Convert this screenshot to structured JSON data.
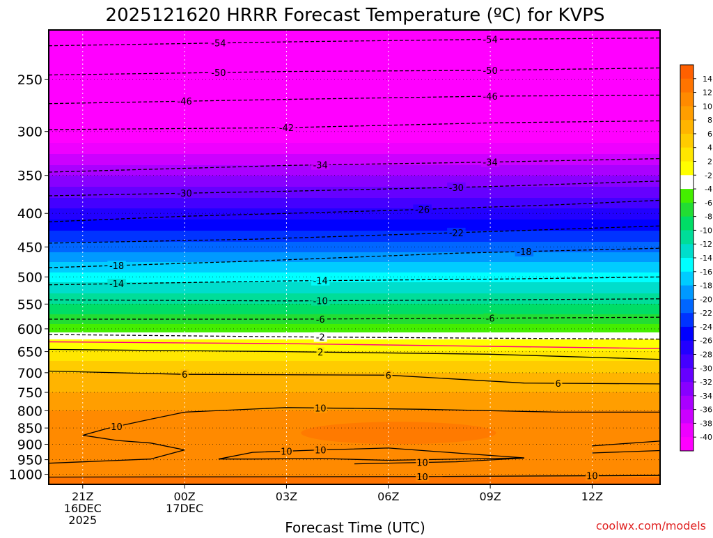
{
  "chart_data": {
    "type": "filled-contour-time-height",
    "title": "2025121620 HRRR Forecast Temperature (ºC) for KVPS",
    "xlabel": "Forecast Time (UTC)",
    "ylabel": "",
    "credit": "coolwx.com/models",
    "x_range_hours": [
      -1,
      17
    ],
    "y_range_hpa": [
      210,
      1036
    ],
    "y_scale": "log",
    "grid": "dotted",
    "x_ticks": [
      {
        "hour": 0,
        "lines": [
          "21Z",
          "16DEC",
          "2025"
        ]
      },
      {
        "hour": 3,
        "lines": [
          "00Z",
          "17DEC"
        ]
      },
      {
        "hour": 6,
        "lines": [
          "03Z"
        ]
      },
      {
        "hour": 9,
        "lines": [
          "06Z"
        ]
      },
      {
        "hour": 12,
        "lines": [
          "09Z"
        ]
      },
      {
        "hour": 15,
        "lines": [
          "12Z"
        ]
      }
    ],
    "y_ticks": [
      "250",
      "300",
      "350",
      "400",
      "450",
      "500",
      "550",
      "600",
      "650",
      "700",
      "750",
      "800",
      "850",
      "900",
      "950",
      "1000"
    ],
    "y_tick_values": [
      250,
      300,
      350,
      400,
      450,
      500,
      550,
      600,
      650,
      700,
      750,
      800,
      850,
      900,
      950,
      1000
    ],
    "colorbar": {
      "labels": [
        "14",
        "12",
        "10",
        "8",
        "6",
        "4",
        "2",
        "-2",
        "-4",
        "-6",
        "-8",
        "-10",
        "-12",
        "-14",
        "-16",
        "-18",
        "-20",
        "-22",
        "-24",
        "-26",
        "-28",
        "-30",
        "-32",
        "-34",
        "-36",
        "-38",
        "-40"
      ],
      "colors": [
        "#ff6000",
        "#ff7400",
        "#ff8a00",
        "#ff9e00",
        "#ffb400",
        "#ffcc00",
        "#ffe600",
        "#ffff00",
        "#ffffff",
        "#44ee00",
        "#22dd33",
        "#00dd66",
        "#00dd99",
        "#00ddcc",
        "#00ffff",
        "#00ccff",
        "#0099ff",
        "#0066ff",
        "#0033ff",
        "#0000ff",
        "#2200ff",
        "#4400ff",
        "#6600ff",
        "#8800ff",
        "#aa00ff",
        "#cc00ff",
        "#ee00ff",
        "#ff00ff"
      ]
    },
    "temperature_profile": [
      {
        "p": 210,
        "t": -57
      },
      {
        "p": 250,
        "t": -50
      },
      {
        "p": 300,
        "t": -42
      },
      {
        "p": 350,
        "t": -34
      },
      {
        "p": 400,
        "t": -27
      },
      {
        "p": 450,
        "t": -21
      },
      {
        "p": 500,
        "t": -15
      },
      {
        "p": 550,
        "t": -10
      },
      {
        "p": 600,
        "t": -5
      },
      {
        "p": 630,
        "t": -1
      },
      {
        "p": 650,
        "t": 2.5
      },
      {
        "p": 700,
        "t": 6
      },
      {
        "p": 750,
        "t": 8
      },
      {
        "p": 800,
        "t": 10
      },
      {
        "p": 850,
        "t": 11
      },
      {
        "p": 900,
        "t": 11.5
      },
      {
        "p": 950,
        "t": 11
      },
      {
        "p": 1000,
        "t": 11
      },
      {
        "p": 1036,
        "t": 14
      }
    ],
    "contours": [
      {
        "label": "-54",
        "style": "dashed",
        "points": [
          [
            -1,
            222
          ],
          [
            6,
            219
          ],
          [
            12,
            217
          ],
          [
            17,
            216
          ]
        ],
        "label_at": [
          4,
          12
        ]
      },
      {
        "label": "-50",
        "style": "dashed",
        "points": [
          [
            -1,
            246
          ],
          [
            6,
            243
          ],
          [
            12,
            242
          ],
          [
            17,
            240
          ]
        ],
        "label_at": [
          4,
          12
        ]
      },
      {
        "label": "-46",
        "style": "dashed",
        "points": [
          [
            -1,
            272
          ],
          [
            6,
            268
          ],
          [
            12,
            265
          ],
          [
            17,
            264
          ]
        ],
        "label_at": [
          3,
          12
        ]
      },
      {
        "label": "-42",
        "style": "dashed",
        "points": [
          [
            -1,
            298
          ],
          [
            6,
            296
          ],
          [
            12,
            291
          ],
          [
            17,
            289
          ]
        ],
        "label_at": [
          6
        ]
      },
      {
        "label": "-34",
        "style": "dashed",
        "points": [
          [
            -1,
            346
          ],
          [
            6,
            338
          ],
          [
            12,
            334
          ],
          [
            17,
            330
          ]
        ],
        "label_at": [
          7,
          12
        ]
      },
      {
        "label": "-30",
        "style": "dashed",
        "points": [
          [
            -1,
            376
          ],
          [
            6,
            370
          ],
          [
            12,
            364
          ],
          [
            17,
            357
          ]
        ],
        "label_at": [
          3,
          11
        ]
      },
      {
        "label": "-26",
        "style": "dashed",
        "points": [
          [
            -1,
            412
          ],
          [
            3,
            404
          ],
          [
            9,
            396
          ],
          [
            14,
            388
          ],
          [
            17,
            382
          ]
        ],
        "label_at": [
          10
        ]
      },
      {
        "label": "-22",
        "style": "dashed",
        "points": [
          [
            -1,
            444
          ],
          [
            5,
            438
          ],
          [
            11,
            428
          ],
          [
            17,
            418
          ]
        ],
        "label_at": [
          11
        ]
      },
      {
        "label": "-18",
        "style": "dashed",
        "points": [
          [
            -1,
            484
          ],
          [
            5,
            473
          ],
          [
            11,
            460
          ],
          [
            17,
            452
          ]
        ],
        "label_at": [
          1,
          13
        ]
      },
      {
        "label": "-14",
        "style": "dashed",
        "points": [
          [
            -1,
            514
          ],
          [
            6,
            507
          ],
          [
            12,
            504
          ],
          [
            17,
            500
          ]
        ],
        "label_at": [
          1,
          7
        ]
      },
      {
        "label": "-10",
        "style": "dashed",
        "points": [
          [
            -1,
            542
          ],
          [
            6,
            544
          ],
          [
            12,
            542
          ],
          [
            17,
            540
          ]
        ],
        "label_at": [
          7
        ]
      },
      {
        "label": "-6",
        "style": "dashed",
        "points": [
          [
            -1,
            580
          ],
          [
            6,
            580
          ],
          [
            12,
            578
          ],
          [
            17,
            576
          ]
        ],
        "label_at": [
          7,
          12
        ]
      },
      {
        "label": "-2",
        "style": "dashed",
        "points": [
          [
            -1,
            612
          ],
          [
            6,
            617
          ],
          [
            12,
            620
          ],
          [
            17,
            622
          ]
        ],
        "label_at": [
          7
        ]
      },
      {
        "label": "",
        "style": "magenta",
        "points": [
          [
            -1,
            628
          ],
          [
            6,
            632
          ],
          [
            12,
            638
          ],
          [
            17,
            643
          ]
        ],
        "label_at": []
      },
      {
        "label": "2",
        "style": "solid",
        "points": [
          [
            -1,
            645
          ],
          [
            6,
            650
          ],
          [
            12,
            656
          ],
          [
            17,
            668
          ]
        ],
        "label_at": [
          7
        ]
      },
      {
        "label": "6",
        "style": "solid",
        "points": [
          [
            -1,
            696
          ],
          [
            3,
            704
          ],
          [
            9,
            706
          ],
          [
            13,
            726
          ],
          [
            17,
            728
          ]
        ],
        "label_at": [
          3,
          9,
          14
        ]
      },
      {
        "label": "10",
        "style": "solid",
        "points": [
          [
            2,
            824
          ],
          [
            3,
            804
          ],
          [
            6,
            791
          ],
          [
            10,
            796
          ],
          [
            14,
            804
          ],
          [
            17,
            804
          ]
        ],
        "label_at": [
          7
        ]
      },
      {
        "label": "10",
        "style": "solid",
        "points": [
          [
            2,
            824
          ],
          [
            0.7,
            852
          ],
          [
            0,
            872
          ],
          [
            1,
            888
          ],
          [
            2,
            896
          ],
          [
            3,
            918
          ],
          [
            2,
            948
          ],
          [
            -1,
            962
          ]
        ],
        "label_at": [
          1
        ]
      },
      {
        "label": "10",
        "style": "solid",
        "points": [
          [
            4,
            948
          ],
          [
            5,
            926
          ],
          [
            7,
            918
          ],
          [
            9,
            912
          ],
          [
            11,
            928
          ],
          [
            13,
            944
          ],
          [
            9,
            952
          ],
          [
            7,
            946
          ],
          [
            5,
            948
          ],
          [
            4,
            948
          ]
        ],
        "label_at": [
          6,
          7
        ]
      },
      {
        "label": "10",
        "style": "solid",
        "points": [
          [
            8,
            964
          ],
          [
            11,
            957
          ],
          [
            13,
            945
          ]
        ],
        "label_at": [
          10
        ]
      },
      {
        "label": "10",
        "style": "solid",
        "points": [
          [
            15,
            905
          ],
          [
            17,
            890
          ]
        ],
        "label_at": []
      },
      {
        "label": "10",
        "style": "solid",
        "points": [
          [
            15,
            928
          ],
          [
            17,
            920
          ]
        ],
        "label_at": []
      },
      {
        "label": "10",
        "style": "solid",
        "points": [
          [
            -1,
            1010
          ],
          [
            10,
            1008
          ],
          [
            17,
            1004
          ]
        ],
        "label_at": [
          10,
          15
        ]
      }
    ]
  }
}
